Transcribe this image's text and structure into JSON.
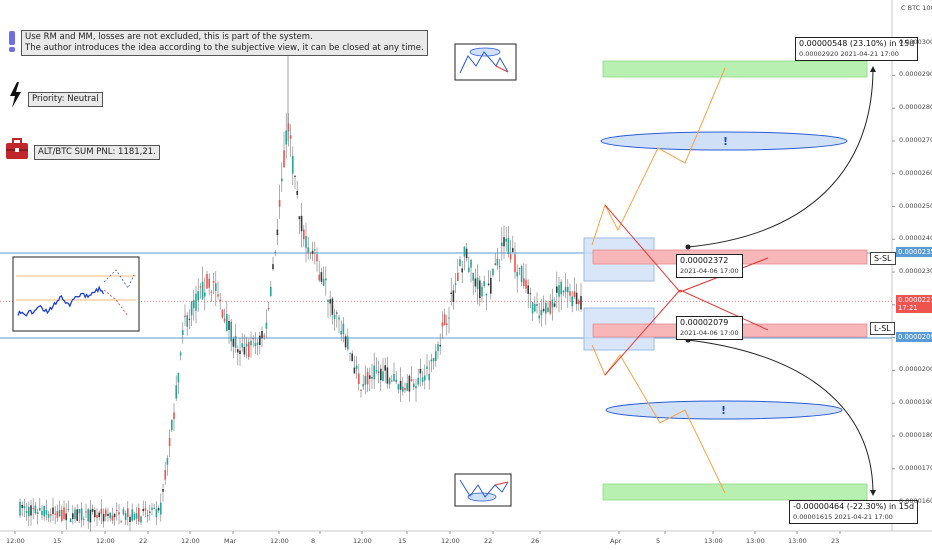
{
  "chart_data": {
    "type": "candlestick",
    "symbol": "C BTC 100",
    "xticks": [
      "12:00",
      "15",
      "12:00",
      "22",
      "12:00",
      "Mar",
      "12:00",
      "8",
      "12:00",
      "15",
      "12:00",
      "22",
      "26",
      "Apr",
      "5",
      "13:00",
      "13:00",
      "13:00",
      "23"
    ],
    "yticks": [
      "0.00003000",
      "0.00002900",
      "0.00002800",
      "0.00002700",
      "0.00002600",
      "0.00002500",
      "0.00002400",
      "0.00002300",
      "0.00002200",
      "0.00002100",
      "0.00002000",
      "0.00001900",
      "0.00001800",
      "0.00001700",
      "0.00001600"
    ],
    "ylim": [
      1.51e-05,
      3.13e-05
    ],
    "current_price": {
      "value": "0.00002211",
      "time": "17:21"
    },
    "levels": [
      {
        "name": "short-level",
        "value": "0.00002358",
        "price": 2.358e-05
      },
      {
        "name": "long-level",
        "value": "0.00002099",
        "price": 2.099e-05
      }
    ],
    "short_sl_label": "S-SL",
    "long_sl_label": "L-SL",
    "entry_upper": {
      "text": "0.00002372",
      "date": "2021-04-06 17:00"
    },
    "entry_lower": {
      "text": "0.00002079",
      "date": "2021-04-06 17:00"
    },
    "target_upper": {
      "text": "0.00000548 (23.10%) in 15d",
      "sub": "0.00002920    2021-04-21  17:00"
    },
    "target_lower": {
      "text": "-0.00000464 (-22.30%) in 15d",
      "sub": "0.00001615    2021-04-21  17:00"
    },
    "scenario_marker": "!"
  },
  "notes": {
    "disclaimer_line1": "Use RM and MM, losses are not excluded, this is part of the system.",
    "disclaimer_line2": "The author introduces the idea according to the subjective view, it can be closed at any time.",
    "priority": "Priority: Neutral",
    "pnl": "ALT/BTC SUM PNL: 1181,21."
  },
  "colors": {
    "up": "#26a69a",
    "down": "#ef5350",
    "candle_dark": "#3a3a3a",
    "level_line": "#5b9bd5",
    "target_green": "#b7f0b0",
    "stop_red": "#f7b6b8",
    "ellipse_blue": "#cfe0f7",
    "path_orange": "#f5a34a",
    "path_red": "#e23b3b"
  }
}
